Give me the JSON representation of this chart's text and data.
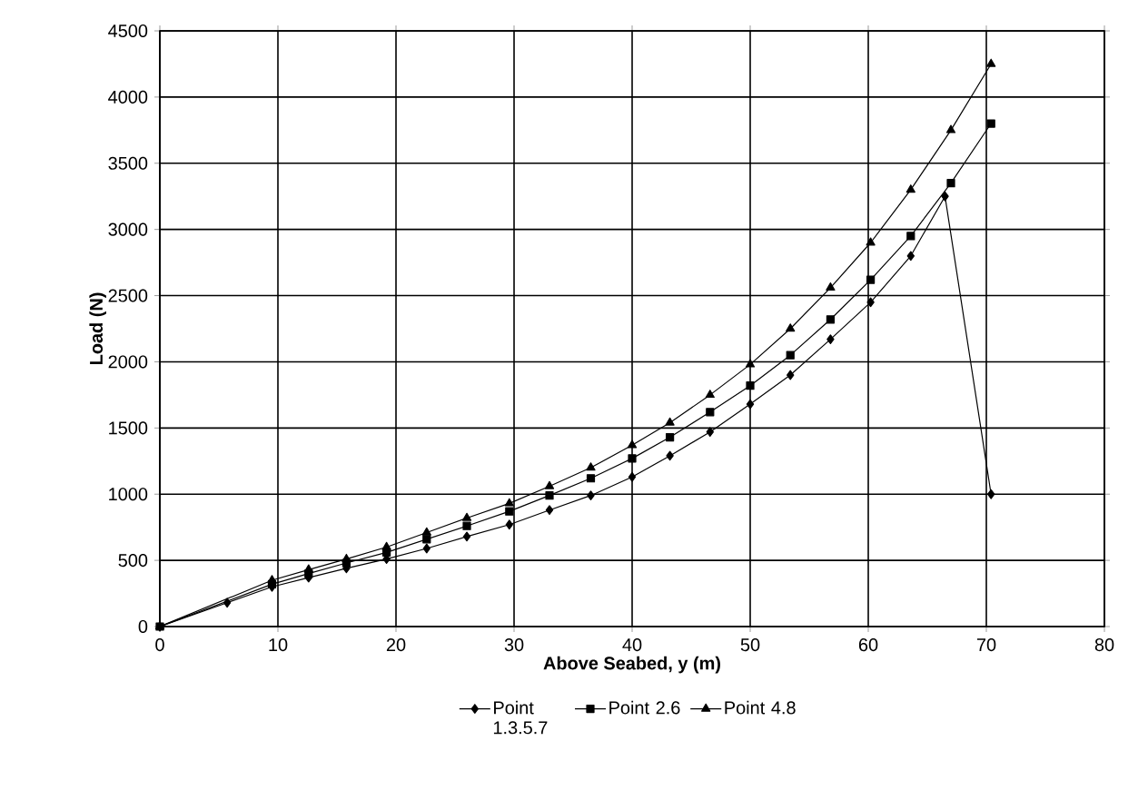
{
  "chart_data": {
    "type": "line",
    "xlabel": "Above Seabed, y (m)",
    "ylabel": "Load (N)",
    "xlim": [
      0,
      80
    ],
    "xticks": [
      0,
      10,
      20,
      30,
      40,
      50,
      60,
      70,
      80
    ],
    "ylim": [
      0,
      4500
    ],
    "yticks": [
      0,
      500,
      1000,
      1500,
      2000,
      2500,
      3000,
      3500,
      4000,
      4500
    ],
    "grid": true,
    "legend": "bottom",
    "line_style": "solid",
    "series": [
      {
        "name": "Point 1.3.5.7",
        "color": "#000000",
        "marker": "diamond",
        "x": [
          0,
          5.7,
          9.5,
          12.6,
          15.8,
          19.2,
          22.6,
          26,
          29.6,
          33,
          36.5,
          40,
          43.2,
          46.6,
          50,
          53.4,
          56.8,
          60.2,
          63.6,
          66.5,
          70.4
        ],
        "values": [
          0,
          180,
          300,
          370,
          440,
          510,
          590,
          680,
          770,
          880,
          990,
          1130,
          1290,
          1470,
          1680,
          1900,
          2170,
          2450,
          2800,
          3250,
          1000
        ]
      },
      {
        "name": "Point 2.6",
        "color": "#000000",
        "marker": "square",
        "x": [
          0,
          9.5,
          12.6,
          15.8,
          19.2,
          22.6,
          26,
          29.6,
          33,
          36.5,
          40,
          43.2,
          46.6,
          50,
          53.4,
          56.8,
          60.2,
          63.6,
          67,
          70.4
        ],
        "values": [
          0,
          320,
          400,
          480,
          560,
          660,
          760,
          870,
          990,
          1120,
          1270,
          1430,
          1620,
          1820,
          2050,
          2320,
          2620,
          2950,
          3350,
          3800
        ]
      },
      {
        "name": "Point 4.8",
        "color": "#000000",
        "marker": "triangle",
        "x": [
          0,
          9.5,
          12.6,
          15.8,
          19.2,
          22.6,
          26,
          29.6,
          33,
          36.5,
          40,
          43.2,
          46.6,
          50,
          53.4,
          56.8,
          60.2,
          63.6,
          67,
          70.4
        ],
        "values": [
          0,
          350,
          430,
          510,
          600,
          710,
          820,
          930,
          1060,
          1200,
          1370,
          1540,
          1750,
          1980,
          2250,
          2560,
          2900,
          3300,
          3750,
          4250
        ]
      }
    ]
  }
}
